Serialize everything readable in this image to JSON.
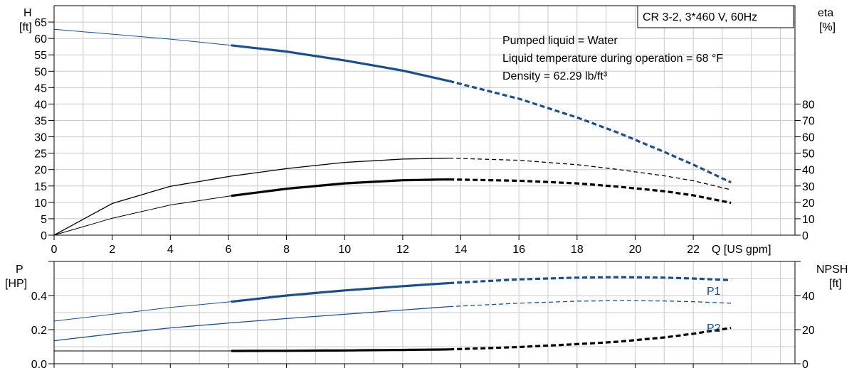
{
  "title": "CR 3-2, 3*460 V, 60Hz",
  "notes": [
    "Pumped liquid = Water",
    "Liquid temperature during operation = 68 °F",
    "Density = 62.29 lb/ft³"
  ],
  "colors": {
    "blue": "#1c4f87",
    "black": "#000000",
    "grid": "#c8c8c8"
  },
  "chart_data": [
    {
      "type": "line",
      "panel": "top",
      "x_axis": {
        "label": "Q [US gpm]",
        "range": [
          0,
          25.5
        ],
        "ticks": [
          0,
          2,
          4,
          6,
          8,
          10,
          12,
          14,
          16,
          18,
          20,
          22
        ]
      },
      "y_left": {
        "label_top": "H",
        "label_unit": "[ft]",
        "range": [
          0,
          70
        ],
        "ticks": [
          0,
          5,
          10,
          15,
          20,
          25,
          30,
          35,
          40,
          45,
          50,
          55,
          60,
          65
        ]
      },
      "y_right": {
        "label_top": "eta",
        "label_unit": "[%]",
        "range": [
          0,
          140
        ],
        "ticks": [
          0,
          10,
          20,
          30,
          40,
          50,
          60,
          70,
          80
        ]
      },
      "grid": true,
      "series": [
        {
          "axis": "left",
          "color": "blue",
          "heavy": true,
          "x": [
            0,
            2,
            4,
            6.1,
            8,
            10,
            12,
            13.6,
            16,
            18,
            19.4,
            21,
            22,
            23.3
          ],
          "y": [
            62.8,
            61.3,
            59.8,
            57.9,
            56.0,
            53.3,
            50.2,
            47.0,
            41.6,
            35.9,
            31.3,
            25.4,
            21.5,
            16.1
          ],
          "solid_range": [
            6.1,
            13.6
          ]
        },
        {
          "axis": "right",
          "color": "black",
          "heavy": false,
          "x": [
            0,
            2,
            4,
            6.1,
            8,
            10,
            12,
            13.6,
            16,
            18,
            19.4,
            21,
            22,
            23.3
          ],
          "y": [
            0,
            19.3,
            29.8,
            36.0,
            40.6,
            44.4,
            46.4,
            47.0,
            45.7,
            43.0,
            40.1,
            36.2,
            33.2,
            27.7
          ],
          "solid_range": [
            0,
            13.6
          ]
        },
        {
          "axis": "right",
          "color": "black",
          "heavy": true,
          "x": [
            0,
            2,
            4,
            6.1,
            8,
            10,
            12,
            13.6,
            16,
            18,
            19.4,
            21,
            22,
            23.3
          ],
          "y": [
            0,
            10.3,
            18.4,
            24.0,
            28.3,
            31.6,
            33.5,
            34.0,
            33.2,
            31.6,
            29.6,
            26.8,
            24.3,
            19.7
          ],
          "solid_range": [
            6.1,
            13.6
          ],
          "thin_before": true
        }
      ]
    },
    {
      "type": "line",
      "panel": "bottom",
      "x_axis": {
        "range": [
          0,
          25.5
        ],
        "ticks": [
          0,
          2,
          4,
          6,
          8,
          10,
          12,
          14,
          16,
          18,
          20,
          22
        ]
      },
      "y_left": {
        "label_top": "P",
        "label_unit": "[HP]",
        "range": [
          0,
          0.6
        ],
        "ticks": [
          0.0,
          0.2,
          0.4
        ],
        "tick_labels": [
          "0.0",
          "0.2",
          "0.4"
        ],
        "extra_tick": 0.6
      },
      "y_right": {
        "label_top": "NPSH",
        "label_unit": "[ft]",
        "range": [
          0,
          60
        ],
        "ticks": [
          0,
          20,
          40
        ],
        "extra_tick": 60
      },
      "grid": true,
      "series": [
        {
          "name": "P1",
          "axis": "left",
          "color": "blue",
          "heavy": true,
          "x": [
            0,
            2,
            4,
            6.1,
            8,
            10,
            12,
            13.6,
            16,
            18,
            19.4,
            21,
            22,
            23.3
          ],
          "y": [
            0.25,
            0.29,
            0.33,
            0.364,
            0.4,
            0.43,
            0.455,
            0.473,
            0.495,
            0.505,
            0.508,
            0.505,
            0.5,
            0.49
          ],
          "solid_range": [
            6.1,
            13.6
          ]
        },
        {
          "name": "P2",
          "axis": "left",
          "color": "blue",
          "heavy": false,
          "x": [
            0,
            2,
            4,
            6.1,
            8,
            10,
            12,
            13.6,
            16,
            18,
            19.4,
            21,
            22,
            23.3
          ],
          "y": [
            0.135,
            0.175,
            0.21,
            0.24,
            0.265,
            0.29,
            0.315,
            0.335,
            0.355,
            0.367,
            0.37,
            0.368,
            0.364,
            0.355
          ],
          "solid_range": [
            0,
            13.6
          ]
        },
        {
          "axis": "right",
          "color": "black",
          "heavy": true,
          "x": [
            0,
            2,
            4,
            6.1,
            8,
            10,
            12,
            13.6,
            16,
            18,
            19.4,
            21,
            22,
            23.3
          ],
          "y": [
            7.5,
            7.5,
            7.5,
            7.5,
            7.6,
            7.8,
            8.1,
            8.4,
            9.8,
            11.5,
            12.9,
            15.4,
            17.6,
            21.0
          ],
          "solid_range": [
            6.1,
            13.6
          ],
          "thin_before": true
        }
      ]
    }
  ]
}
